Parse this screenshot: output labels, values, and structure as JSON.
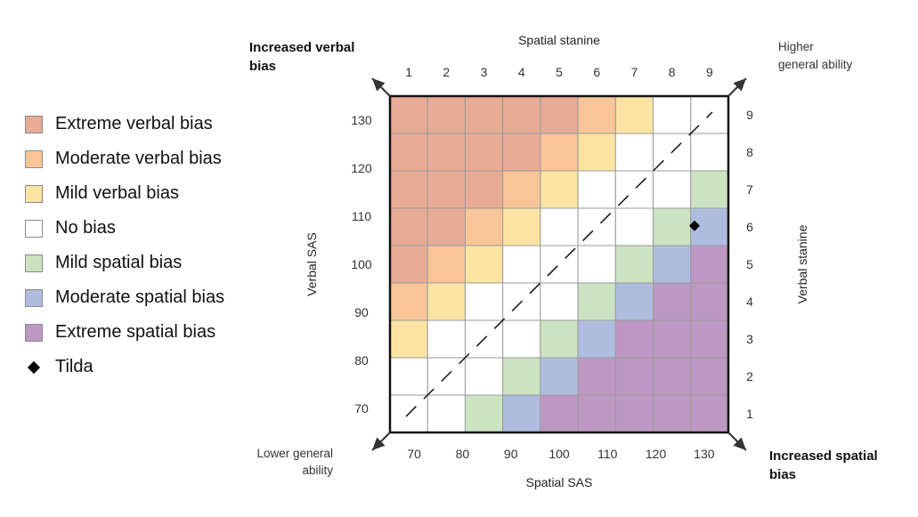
{
  "legend": {
    "items": [
      {
        "label": "Extreme verbal bias",
        "color": "#e8ab96",
        "level": 3
      },
      {
        "label": "Moderate verbal bias",
        "color": "#f8c598",
        "level": 2
      },
      {
        "label": "Mild verbal bias",
        "color": "#fbe4a3",
        "level": 1
      },
      {
        "label": "No bias",
        "color": "#ffffff",
        "level": 0
      },
      {
        "label": "Mild spatial bias",
        "color": "#cce3c2",
        "level": -1
      },
      {
        "label": "Moderate spatial bias",
        "color": "#aebddf",
        "level": -2
      },
      {
        "label": "Extreme spatial bias",
        "color": "#bd98c4",
        "level": -3
      }
    ],
    "marker_label": "Tilda"
  },
  "chart_data": {
    "type": "heatmap",
    "x_top_label": "Spatial stanine",
    "x_bottom_label": "Spatial SAS",
    "y_left_label": "Verbal SAS",
    "y_right_label": "Verbal stanine",
    "x_top_ticks": [
      "1",
      "2",
      "3",
      "4",
      "5",
      "6",
      "7",
      "8",
      "9"
    ],
    "x_bottom_ticks": [
      "70",
      "80",
      "90",
      "100",
      "110",
      "120",
      "130"
    ],
    "y_left_ticks": [
      "130",
      "120",
      "110",
      "100",
      "90",
      "80",
      "70"
    ],
    "y_right_ticks": [
      "9",
      "8",
      "7",
      "6",
      "5",
      "4",
      "3",
      "2",
      "1"
    ],
    "sas_range": [
      65,
      135
    ],
    "corner_top_left": "Increased verbal bias",
    "corner_top_right": "Higher general ability",
    "corner_bottom_left": "Lower general ability",
    "corner_bottom_right": "Increased spatial bias",
    "grid_rows": [
      [
        3,
        3,
        3,
        3,
        3,
        2,
        1,
        0,
        0
      ],
      [
        3,
        3,
        3,
        3,
        2,
        1,
        0,
        0,
        0
      ],
      [
        3,
        3,
        3,
        2,
        1,
        0,
        0,
        0,
        -1
      ],
      [
        3,
        3,
        2,
        1,
        0,
        0,
        0,
        -1,
        -2
      ],
      [
        3,
        2,
        1,
        0,
        0,
        0,
        -1,
        -2,
        -3
      ],
      [
        2,
        1,
        0,
        0,
        0,
        -1,
        -2,
        -3,
        -3
      ],
      [
        1,
        0,
        0,
        0,
        -1,
        -2,
        -3,
        -3,
        -3
      ],
      [
        0,
        0,
        0,
        -1,
        -2,
        -3,
        -3,
        -3,
        -3
      ],
      [
        0,
        0,
        -1,
        -2,
        -3,
        -3,
        -3,
        -3,
        -3
      ]
    ],
    "marker": {
      "name": "Tilda",
      "spatial_sas": 128,
      "verbal_sas": 108
    }
  }
}
